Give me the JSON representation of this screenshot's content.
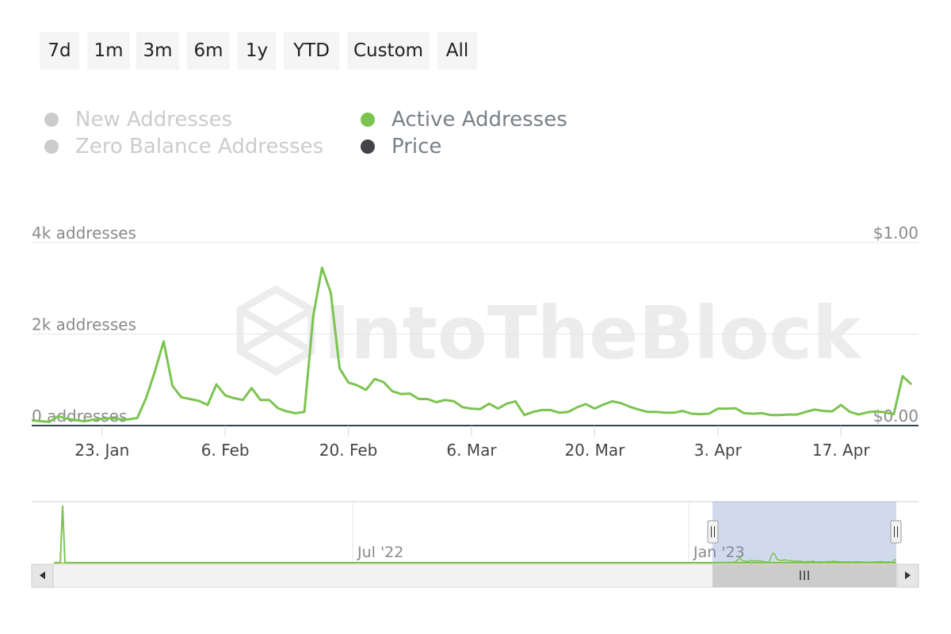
{
  "range_buttons": [
    "7d",
    "1m",
    "3m",
    "6m",
    "1y",
    "YTD",
    "Custom",
    "All"
  ],
  "legend": [
    {
      "label": "New Addresses",
      "color": "#cccccc",
      "visible": false
    },
    {
      "label": "Zero Balance Addresses",
      "color": "#cccccc",
      "visible": false
    },
    {
      "label": "Active Addresses",
      "color": "#7cc452",
      "visible": true
    },
    {
      "label": "Price",
      "color": "#434348",
      "visible": true
    }
  ],
  "watermark": "IntoTheBlock",
  "chart_data": {
    "type": "line",
    "y_axis_left": {
      "tick_labels": [
        "0 addresses",
        "2k addresses",
        "4k addresses"
      ],
      "range": [
        0,
        4000
      ]
    },
    "y_axis_right": {
      "tick_labels": [
        "$0.00",
        "$1.00"
      ],
      "range": [
        0,
        1
      ]
    },
    "x_axis": {
      "tick_labels": [
        "23. Jan",
        "6. Feb",
        "20. Feb",
        "6. Mar",
        "20. Mar",
        "3. Apr",
        "17. Apr"
      ]
    },
    "grid": true,
    "series": [
      {
        "name": "Active Addresses",
        "color": "#7cc452",
        "x_start": "2023-01-15",
        "x_step_days": 1,
        "values": [
          115,
          95,
          80,
          205,
          150,
          120,
          95,
          130,
          150,
          160,
          140,
          135,
          165,
          600,
          1180,
          1840,
          870,
          620,
          580,
          540,
          450,
          900,
          660,
          600,
          560,
          820,
          560,
          560,
          380,
          310,
          270,
          300,
          2390,
          3450,
          2900,
          1250,
          940,
          880,
          780,
          1020,
          950,
          750,
          690,
          700,
          580,
          580,
          510,
          560,
          530,
          400,
          370,
          360,
          480,
          370,
          480,
          530,
          230,
          300,
          340,
          340,
          280,
          300,
          400,
          470,
          370,
          460,
          530,
          490,
          410,
          350,
          300,
          300,
          280,
          280,
          320,
          260,
          250,
          260,
          370,
          370,
          380,
          270,
          260,
          270,
          230,
          230,
          240,
          240,
          300,
          350,
          320,
          310,
          450,
          300,
          240,
          290,
          310,
          290,
          250,
          1080,
          900
        ]
      },
      {
        "name": "Price",
        "color": "#434348",
        "values": []
      }
    ]
  },
  "navigator": {
    "tick_labels": [
      "Jul '22",
      "Jan '23"
    ]
  }
}
